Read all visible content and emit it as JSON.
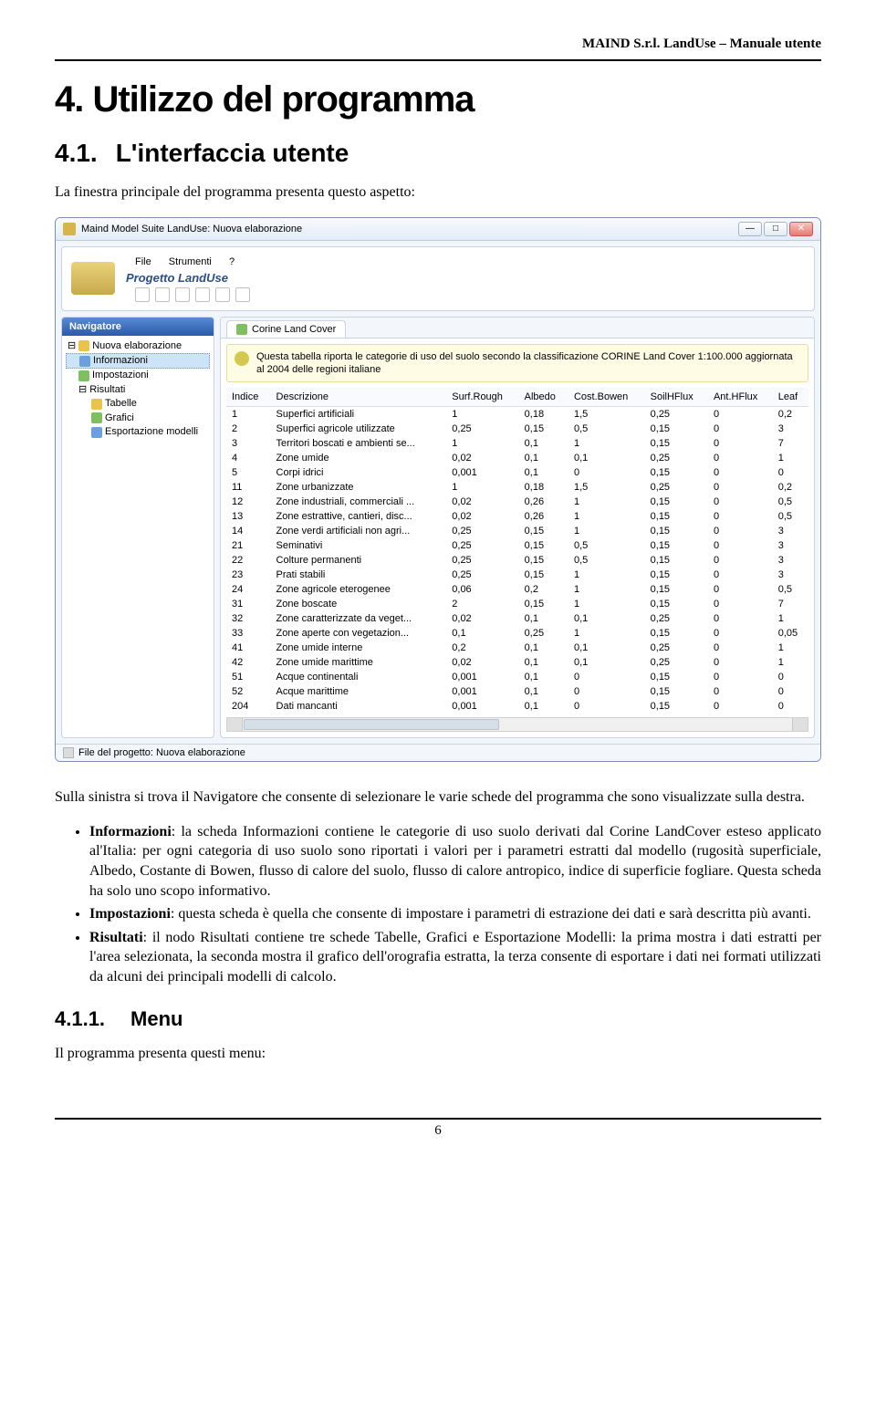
{
  "doc": {
    "header_right": "MAIND S.r.l. LandUse – Manuale utente",
    "h1": "4. Utilizzo del programma",
    "h2_num": "4.1.",
    "h2_text": "L'interfaccia utente",
    "intro": "La finestra principale del programma presenta questo aspetto:",
    "after_shot": "Sulla sinistra si trova il Navigatore che consente di selezionare le varie schede del programma che sono visualizzate sulla destra.",
    "bullets": [
      {
        "b": "Informazioni",
        "t": ": la scheda Informazioni contiene le categorie di uso suolo derivati dal Corine LandCover esteso applicato al'Italia: per ogni categoria di uso suolo sono riportati i valori per i parametri estratti dal modello (rugosità superficiale, Albedo, Costante di Bowen, flusso di calore del suolo, flusso di calore antropico, indice di superficie fogliare. Questa scheda ha solo uno scopo informativo."
      },
      {
        "b": "Impostazioni",
        "t": ": questa scheda è quella che consente di impostare i parametri di estrazione dei dati e sarà descritta più avanti."
      },
      {
        "b": "Risultati",
        "t": ": il nodo Risultati contiene tre schede Tabelle, Grafici e Esportazione Modelli: la prima mostra i dati estratti per l'area selezionata, la seconda mostra il grafico dell'orografia estratta, la terza consente di esportare i dati nei formati utilizzati da alcuni dei principali modelli di calcolo."
      }
    ],
    "h3_num": "4.1.1.",
    "h3_text": "Menu",
    "menu_intro": "Il programma presenta questi menu:",
    "page_num": "6"
  },
  "app": {
    "title": "Maind Model Suite LandUse: Nuova elaborazione",
    "project_label": "Progetto LandUse",
    "menu": [
      "File",
      "Strumenti",
      "?"
    ],
    "nav_header": "Navigatore",
    "tree": {
      "root": "Nuova elaborazione",
      "items": [
        "Informazioni",
        "Impostazioni",
        "Risultati"
      ],
      "sub": [
        "Tabelle",
        "Grafici",
        "Esportazione modelli"
      ]
    },
    "tab": "Corine Land Cover",
    "banner": "Questa tabella riporta le categorie di uso del suolo secondo la classificazione CORINE Land Cover 1:100.000 aggiornata al 2004 delle regioni italiane",
    "columns": [
      "Indice",
      "Descrizione",
      "Surf.Rough",
      "Albedo",
      "Cost.Bowen",
      "SoilHFlux",
      "Ant.HFlux",
      "Leaf"
    ],
    "rows": [
      [
        "1",
        "Superfici artificiali",
        "1",
        "0,18",
        "1,5",
        "0,25",
        "0",
        "0,2"
      ],
      [
        "2",
        "Superfici agricole utilizzate",
        "0,25",
        "0,15",
        "0,5",
        "0,15",
        "0",
        "3"
      ],
      [
        "3",
        "Territori boscati e ambienti se...",
        "1",
        "0,1",
        "1",
        "0,15",
        "0",
        "7"
      ],
      [
        "4",
        "Zone umide",
        "0,02",
        "0,1",
        "0,1",
        "0,25",
        "0",
        "1"
      ],
      [
        "5",
        "Corpi idrici",
        "0,001",
        "0,1",
        "0",
        "0,15",
        "0",
        "0"
      ],
      [
        "11",
        "Zone urbanizzate",
        "1",
        "0,18",
        "1,5",
        "0,25",
        "0",
        "0,2"
      ],
      [
        "12",
        "Zone industriali, commerciali ...",
        "0,02",
        "0,26",
        "1",
        "0,15",
        "0",
        "0,5"
      ],
      [
        "13",
        "Zone estrattive, cantieri, disc...",
        "0,02",
        "0,26",
        "1",
        "0,15",
        "0",
        "0,5"
      ],
      [
        "14",
        "Zone verdi artificiali non agri...",
        "0,25",
        "0,15",
        "1",
        "0,15",
        "0",
        "3"
      ],
      [
        "21",
        "Seminativi",
        "0,25",
        "0,15",
        "0,5",
        "0,15",
        "0",
        "3"
      ],
      [
        "22",
        "Colture permanenti",
        "0,25",
        "0,15",
        "0,5",
        "0,15",
        "0",
        "3"
      ],
      [
        "23",
        "Prati stabili",
        "0,25",
        "0,15",
        "1",
        "0,15",
        "0",
        "3"
      ],
      [
        "24",
        "Zone agricole eterogenee",
        "0,06",
        "0,2",
        "1",
        "0,15",
        "0",
        "0,5"
      ],
      [
        "31",
        "Zone boscate",
        "2",
        "0,15",
        "1",
        "0,15",
        "0",
        "7"
      ],
      [
        "32",
        "Zone caratterizzate da veget...",
        "0,02",
        "0,1",
        "0,1",
        "0,25",
        "0",
        "1"
      ],
      [
        "33",
        "Zone aperte con vegetazion...",
        "0,1",
        "0,25",
        "1",
        "0,15",
        "0",
        "0,05"
      ],
      [
        "41",
        "Zone umide interne",
        "0,2",
        "0,1",
        "0,1",
        "0,25",
        "0",
        "1"
      ],
      [
        "42",
        "Zone umide marittime",
        "0,02",
        "0,1",
        "0,1",
        "0,25",
        "0",
        "1"
      ],
      [
        "51",
        "Acque continentali",
        "0,001",
        "0,1",
        "0",
        "0,15",
        "0",
        "0"
      ],
      [
        "52",
        "Acque marittime",
        "0,001",
        "0,1",
        "0",
        "0,15",
        "0",
        "0"
      ],
      [
        "204",
        "Dati mancanti",
        "0,001",
        "0,1",
        "0",
        "0,15",
        "0",
        "0"
      ]
    ],
    "status": "File del progetto:  Nuova elaborazione"
  }
}
